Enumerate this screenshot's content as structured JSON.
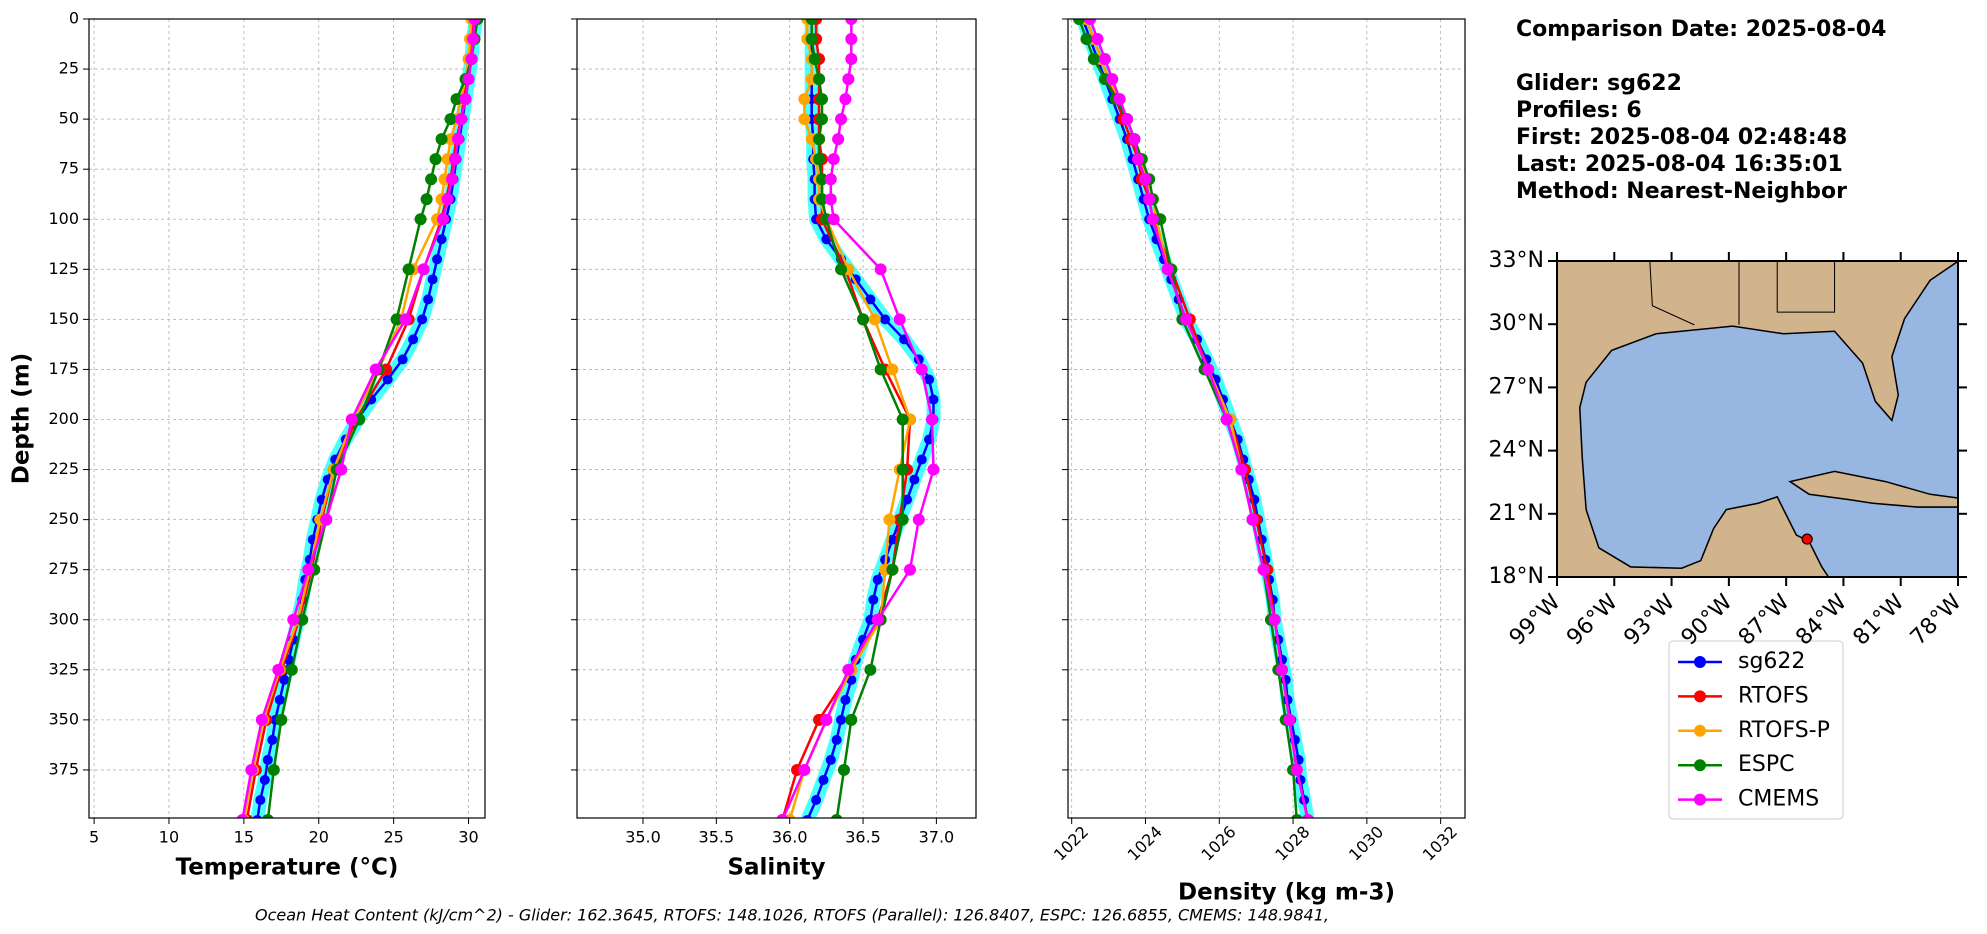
{
  "info": {
    "date": "Comparison Date: 2025-08-04",
    "glider": "Glider: sg622",
    "profiles": "Profiles: 6",
    "first": "First: 2025-08-04 02:48:48",
    "last": "Last: 2025-08-04 16:35:01",
    "method": "Method: Nearest-Neighbor"
  },
  "footer": "Ocean Heat Content (kJ/cm^2) - Glider: 162.3645,  RTOFS: 148.1026,  RTOFS (Parallel): 126.8407,  ESPC: 126.6855,  CMEMS: 148.9841,",
  "legend": {
    "series": [
      {
        "name": "sg622",
        "color": "#0000ff"
      },
      {
        "name": "RTOFS",
        "color": "#ff0000"
      },
      {
        "name": "RTOFS-P",
        "color": "#ffa500"
      },
      {
        "name": "ESPC",
        "color": "#008000"
      },
      {
        "name": "CMEMS",
        "color": "#ff00ff"
      }
    ]
  },
  "chart_data": [
    {
      "type": "line",
      "xlabel": "Temperature (°C)",
      "ylabel": "Depth (m)",
      "xlim": [
        4.66,
        31.1
      ],
      "xticks": [
        5,
        10,
        15,
        20,
        25,
        30
      ],
      "ylim": [
        399,
        0
      ],
      "yticks": [
        0,
        25,
        50,
        75,
        100,
        125,
        150,
        175,
        200,
        225,
        250,
        275,
        300,
        325,
        350,
        375
      ],
      "grid": true,
      "series": [
        {
          "depth": [
            0,
            10,
            20,
            30,
            40,
            50,
            60,
            70,
            80,
            90,
            100,
            110,
            120,
            130,
            140,
            150,
            160,
            170,
            180,
            190,
            200,
            210,
            220,
            230,
            240,
            250,
            260,
            270,
            280,
            290,
            300,
            310,
            320,
            330,
            340,
            350,
            360,
            370,
            380,
            390,
            400
          ],
          "values": [
            30.5,
            30.3,
            30.2,
            30.0,
            29.8,
            29.6,
            29.4,
            29.2,
            29.0,
            28.8,
            28.5,
            28.2,
            27.9,
            27.6,
            27.3,
            26.9,
            26.3,
            25.6,
            24.6,
            23.5,
            22.6,
            21.8,
            21.1,
            20.6,
            20.2,
            19.9,
            19.6,
            19.4,
            19.1,
            18.9,
            18.6,
            18.3,
            18.0,
            17.7,
            17.4,
            17.1,
            16.9,
            16.6,
            16.4,
            16.1,
            15.9
          ]
        },
        {
          "depth": [
            0,
            10,
            20,
            30,
            40,
            50,
            60,
            70,
            80,
            90,
            100,
            125,
            150,
            175,
            200,
            225,
            250,
            275,
            300,
            325,
            350,
            375,
            400
          ],
          "values": [
            30.3,
            30.2,
            30.1,
            29.9,
            29.7,
            29.5,
            29.2,
            29.0,
            28.8,
            28.5,
            28.2,
            27.0,
            26.0,
            24.5,
            22.5,
            21.0,
            20.2,
            19.5,
            18.7,
            17.5,
            16.5,
            15.8,
            15.2
          ]
        },
        {
          "depth": [
            0,
            10,
            20,
            30,
            40,
            50,
            60,
            70,
            80,
            90,
            100,
            125,
            150,
            175,
            200,
            225,
            250,
            275,
            300,
            325,
            350,
            375,
            400
          ],
          "values": [
            30.2,
            30.1,
            30.0,
            29.8,
            29.5,
            29.2,
            28.8,
            28.6,
            28.4,
            28.2,
            27.9,
            26.3,
            25.5,
            24.0,
            22.3,
            21.0,
            20.1,
            19.4,
            18.6,
            17.4,
            16.3,
            15.6,
            15.0
          ]
        },
        {
          "depth": [
            0,
            10,
            20,
            30,
            40,
            50,
            60,
            70,
            80,
            90,
            100,
            125,
            150,
            175,
            200,
            225,
            250,
            275,
            300,
            325,
            350,
            375,
            400
          ],
          "values": [
            30.6,
            30.4,
            30.2,
            29.8,
            29.2,
            28.8,
            28.2,
            27.8,
            27.5,
            27.2,
            26.8,
            26.0,
            25.2,
            24.0,
            22.7,
            21.2,
            20.5,
            19.7,
            18.9,
            18.2,
            17.5,
            17.0,
            16.6
          ]
        },
        {
          "depth": [
            0,
            10,
            20,
            30,
            40,
            50,
            60,
            70,
            80,
            90,
            100,
            125,
            150,
            175,
            200,
            225,
            250,
            275,
            300,
            325,
            350,
            375,
            400
          ],
          "values": [
            30.4,
            30.3,
            30.2,
            30.0,
            29.8,
            29.5,
            29.3,
            29.1,
            28.9,
            28.6,
            28.3,
            27.0,
            25.8,
            23.8,
            22.2,
            21.5,
            20.5,
            19.3,
            18.3,
            17.3,
            16.2,
            15.5,
            14.9
          ]
        }
      ]
    },
    {
      "type": "line",
      "xlabel": "Salinity",
      "xlim": [
        34.55,
        37.27
      ],
      "xticks": [
        {
          "value": 35,
          "label": "35.0"
        },
        35.5,
        {
          "value": 36,
          "label": "36.0"
        },
        36.5,
        {
          "value": 37,
          "label": "37.0"
        }
      ],
      "ylim": [
        399,
        0
      ],
      "yticks": [
        0,
        25,
        50,
        75,
        100,
        125,
        150,
        175,
        200,
        225,
        250,
        275,
        300,
        325,
        350,
        375
      ],
      "grid": true,
      "series": [
        {
          "depth": [
            0,
            10,
            20,
            30,
            40,
            50,
            60,
            70,
            80,
            90,
            100,
            110,
            120,
            130,
            140,
            150,
            160,
            170,
            180,
            190,
            200,
            210,
            220,
            230,
            240,
            250,
            260,
            270,
            280,
            290,
            300,
            310,
            320,
            330,
            340,
            350,
            360,
            370,
            380,
            390,
            400
          ],
          "values": [
            36.15,
            36.15,
            36.15,
            36.15,
            36.15,
            36.15,
            36.16,
            36.16,
            36.17,
            36.17,
            36.18,
            36.25,
            36.35,
            36.45,
            36.55,
            36.65,
            36.78,
            36.88,
            36.95,
            36.98,
            36.98,
            36.95,
            36.9,
            36.85,
            36.8,
            36.75,
            36.7,
            36.65,
            36.6,
            36.57,
            36.55,
            36.5,
            36.45,
            36.42,
            36.38,
            36.35,
            36.32,
            36.28,
            36.23,
            36.18,
            36.12
          ]
        },
        {
          "depth": [
            0,
            10,
            20,
            30,
            40,
            50,
            60,
            70,
            80,
            90,
            100,
            125,
            150,
            175,
            200,
            225,
            250,
            275,
            300,
            325,
            350,
            375,
            400
          ],
          "values": [
            36.18,
            36.18,
            36.2,
            36.2,
            36.2,
            36.2,
            36.2,
            36.22,
            36.22,
            36.22,
            36.22,
            36.38,
            36.5,
            36.65,
            36.82,
            36.8,
            36.75,
            36.7,
            36.6,
            36.42,
            36.2,
            36.05,
            35.95
          ]
        },
        {
          "depth": [
            0,
            10,
            20,
            30,
            40,
            50,
            60,
            70,
            80,
            90,
            100,
            125,
            150,
            175,
            200,
            225,
            250,
            275,
            300,
            325,
            350,
            375,
            400
          ],
          "values": [
            36.12,
            36.12,
            36.15,
            36.15,
            36.1,
            36.1,
            36.15,
            36.18,
            36.2,
            36.2,
            36.25,
            36.4,
            36.58,
            36.7,
            36.82,
            36.75,
            36.68,
            36.65,
            36.62,
            36.42,
            36.25,
            36.1,
            36.0
          ]
        },
        {
          "depth": [
            0,
            10,
            20,
            30,
            40,
            50,
            60,
            70,
            80,
            90,
            100,
            125,
            150,
            175,
            200,
            225,
            250,
            275,
            300,
            325,
            350,
            375,
            400
          ],
          "values": [
            36.15,
            36.15,
            36.17,
            36.2,
            36.22,
            36.22,
            36.2,
            36.2,
            36.22,
            36.22,
            36.25,
            36.35,
            36.5,
            36.62,
            36.77,
            36.77,
            36.77,
            36.7,
            36.62,
            36.55,
            36.42,
            36.37,
            36.32
          ]
        },
        {
          "depth": [
            0,
            10,
            20,
            30,
            40,
            50,
            60,
            70,
            80,
            90,
            100,
            125,
            150,
            175,
            200,
            225,
            250,
            275,
            300,
            325,
            350,
            375,
            400
          ],
          "values": [
            36.42,
            36.42,
            36.42,
            36.4,
            36.38,
            36.35,
            36.33,
            36.3,
            36.28,
            36.28,
            36.3,
            36.62,
            36.75,
            36.9,
            36.97,
            36.98,
            36.88,
            36.82,
            36.6,
            36.4,
            36.25,
            36.1,
            35.95
          ]
        }
      ]
    },
    {
      "type": "line",
      "xlabel": "Density (kg m-3)",
      "xlim": [
        1021.9,
        1032.66
      ],
      "xticks": [
        1022,
        1024,
        1026,
        1028,
        1030,
        1032
      ],
      "ylim": [
        399,
        0
      ],
      "yticks": [
        0,
        25,
        50,
        75,
        100,
        125,
        150,
        175,
        200,
        225,
        250,
        275,
        300,
        325,
        350,
        375
      ],
      "grid": true,
      "series": [
        {
          "depth": [
            0,
            10,
            20,
            30,
            40,
            50,
            60,
            70,
            80,
            90,
            100,
            110,
            120,
            130,
            140,
            150,
            160,
            170,
            180,
            190,
            200,
            210,
            220,
            230,
            240,
            250,
            260,
            270,
            280,
            290,
            300,
            310,
            320,
            330,
            340,
            350,
            360,
            370,
            380,
            390,
            400
          ],
          "values": [
            1022.3,
            1022.5,
            1022.7,
            1022.9,
            1023.1,
            1023.3,
            1023.5,
            1023.65,
            1023.8,
            1023.95,
            1024.1,
            1024.3,
            1024.5,
            1024.7,
            1024.9,
            1025.1,
            1025.4,
            1025.65,
            1025.9,
            1026.1,
            1026.3,
            1026.5,
            1026.65,
            1026.8,
            1026.95,
            1027.05,
            1027.15,
            1027.25,
            1027.35,
            1027.45,
            1027.5,
            1027.6,
            1027.7,
            1027.8,
            1027.85,
            1027.95,
            1028.05,
            1028.15,
            1028.2,
            1028.3,
            1028.4
          ]
        },
        {
          "depth": [
            0,
            10,
            20,
            30,
            40,
            50,
            60,
            70,
            80,
            90,
            100,
            125,
            150,
            175,
            200,
            225,
            250,
            275,
            300,
            325,
            350,
            375,
            400
          ],
          "values": [
            1022.4,
            1022.6,
            1022.8,
            1023.0,
            1023.2,
            1023.4,
            1023.6,
            1023.8,
            1023.9,
            1024.1,
            1024.2,
            1024.7,
            1025.2,
            1025.7,
            1026.3,
            1026.7,
            1027.0,
            1027.3,
            1027.5,
            1027.7,
            1027.9,
            1028.1,
            1028.4
          ]
        },
        {
          "depth": [
            0,
            10,
            20,
            30,
            40,
            50,
            60,
            70,
            80,
            90,
            100,
            125,
            150,
            175,
            200,
            225,
            250,
            275,
            300,
            325,
            350,
            375,
            400
          ],
          "values": [
            1022.4,
            1022.6,
            1022.8,
            1023.0,
            1023.3,
            1023.5,
            1023.7,
            1023.9,
            1024.0,
            1024.2,
            1024.3,
            1024.6,
            1025.1,
            1025.7,
            1026.3,
            1026.6,
            1026.9,
            1027.2,
            1027.5,
            1027.7,
            1027.9,
            1028.1,
            1028.4
          ]
        },
        {
          "depth": [
            0,
            10,
            20,
            30,
            40,
            50,
            60,
            70,
            80,
            90,
            100,
            125,
            150,
            175,
            200,
            225,
            250,
            275,
            300,
            325,
            350,
            375,
            400
          ],
          "values": [
            1022.2,
            1022.4,
            1022.6,
            1022.9,
            1023.2,
            1023.5,
            1023.7,
            1023.9,
            1024.1,
            1024.2,
            1024.4,
            1024.7,
            1025.0,
            1025.6,
            1026.2,
            1026.6,
            1026.9,
            1027.2,
            1027.4,
            1027.6,
            1027.8,
            1028.0,
            1028.1
          ]
        },
        {
          "depth": [
            0,
            10,
            20,
            30,
            40,
            50,
            60,
            70,
            80,
            90,
            100,
            125,
            150,
            175,
            200,
            225,
            250,
            275,
            300,
            325,
            350,
            375,
            400
          ],
          "values": [
            1022.5,
            1022.7,
            1022.9,
            1023.1,
            1023.3,
            1023.5,
            1023.7,
            1023.8,
            1024.0,
            1024.1,
            1024.2,
            1024.6,
            1025.1,
            1025.7,
            1026.2,
            1026.6,
            1026.9,
            1027.2,
            1027.5,
            1027.7,
            1027.9,
            1028.1,
            1028.4
          ]
        }
      ]
    }
  ],
  "map": {
    "xlim": [
      -99,
      -78
    ],
    "ylim": [
      18,
      33
    ],
    "xticks": [
      {
        "value": -99,
        "label": "99°W"
      },
      {
        "value": -96,
        "label": "96°W"
      },
      {
        "value": -93,
        "label": "93°W"
      },
      {
        "value": -90,
        "label": "90°W"
      },
      {
        "value": -87,
        "label": "87°W"
      },
      {
        "value": -84,
        "label": "84°W"
      },
      {
        "value": -81,
        "label": "81°W"
      },
      {
        "value": -78,
        "label": "78°W"
      }
    ],
    "yticks": [
      {
        "value": 18,
        "label": "18°N"
      },
      {
        "value": 21,
        "label": "21°N"
      },
      {
        "value": 24,
        "label": "24°N"
      },
      {
        "value": 27,
        "label": "27°N"
      },
      {
        "value": 30,
        "label": "30°N"
      },
      {
        "value": 33,
        "label": "33°N"
      }
    ],
    "point": {
      "lon": -85.9,
      "lat": 19.8,
      "color": "#ff0000"
    }
  }
}
